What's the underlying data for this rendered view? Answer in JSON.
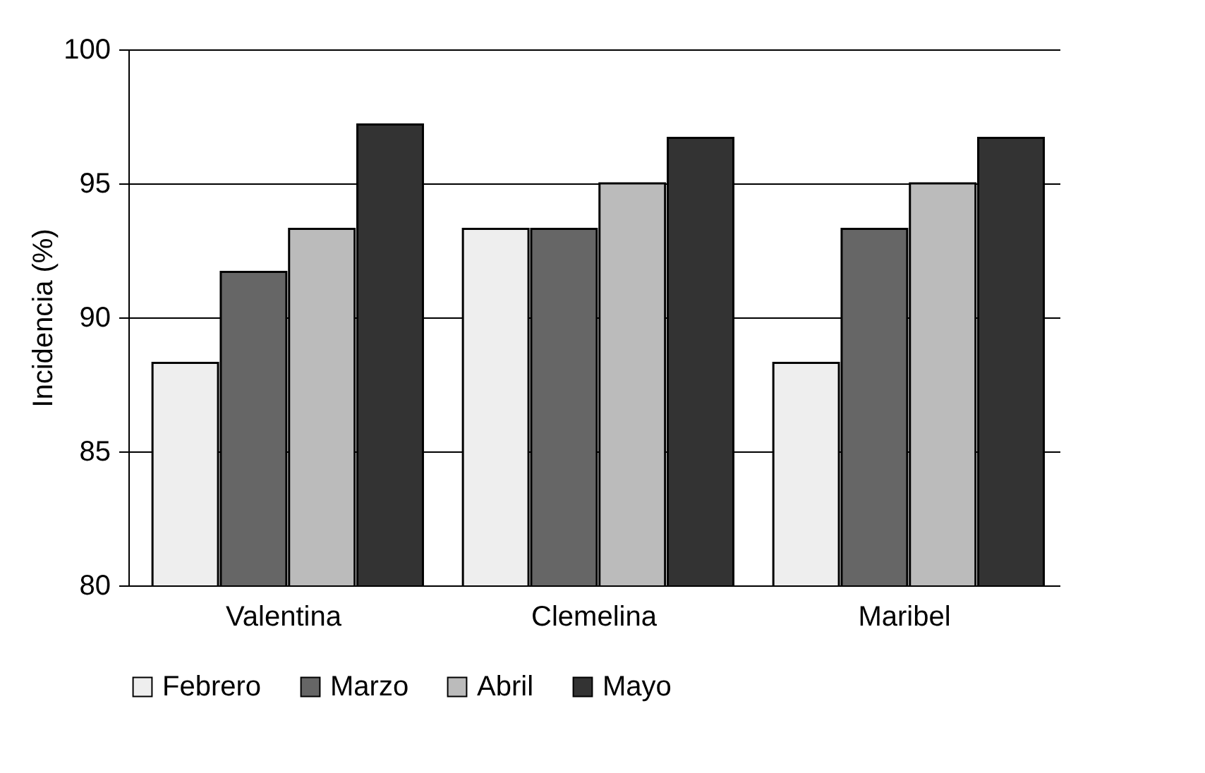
{
  "chart_data": {
    "type": "bar",
    "ylabel": "Incidencia (%)",
    "categories": [
      "Valentina",
      "Clemelina",
      "Maribel"
    ],
    "series": [
      {
        "name": "Febrero",
        "color": "#eeeeee",
        "values": [
          88.3,
          93.3,
          88.3
        ]
      },
      {
        "name": "Marzo",
        "color": "#666666",
        "values": [
          91.7,
          93.3,
          93.3
        ]
      },
      {
        "name": "Abril",
        "color": "#bbbbbb",
        "values": [
          93.3,
          95.0,
          95.0
        ]
      },
      {
        "name": "Mayo",
        "color": "#333333",
        "values": [
          97.2,
          96.7,
          96.7
        ]
      }
    ],
    "ylim": [
      80,
      100
    ],
    "yticks": [
      80,
      85,
      90,
      95,
      100
    ],
    "grid": "y",
    "legend": "bottom"
  }
}
